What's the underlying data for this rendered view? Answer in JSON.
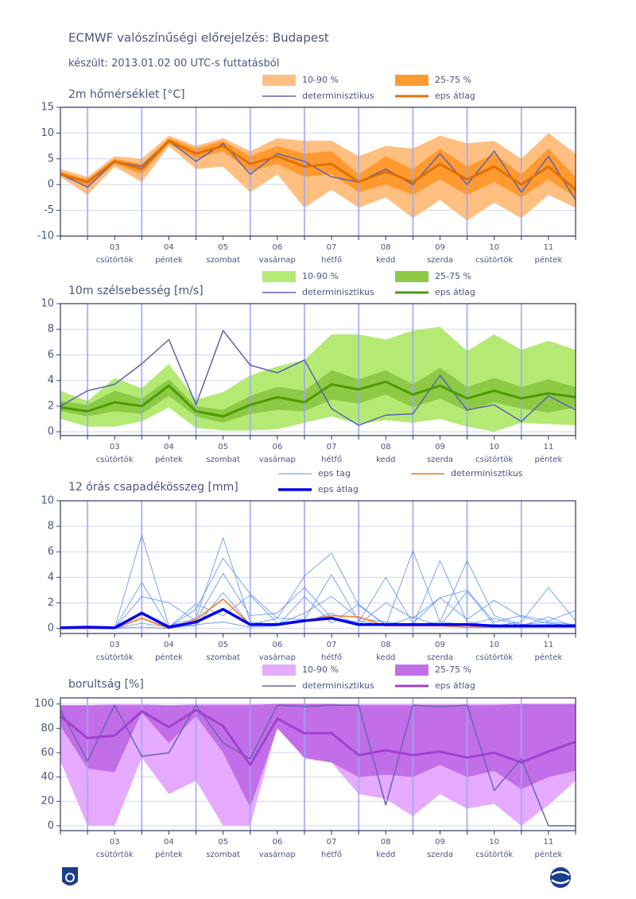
{
  "title": "ECMWF valószínűségi előrejelzés: Budapest",
  "subtitle": "készült: 2013.01.02 00 UTC-s futtatásból",
  "days": [
    {
      "date": "03",
      "weekday": "csütörtök"
    },
    {
      "date": "04",
      "weekday": "péntek"
    },
    {
      "date": "05",
      "weekday": "szombat"
    },
    {
      "date": "06",
      "weekday": "vasárnap"
    },
    {
      "date": "07",
      "weekday": "hétfő"
    },
    {
      "date": "08",
      "weekday": "kedd"
    },
    {
      "date": "09",
      "weekday": "szerda"
    },
    {
      "date": "10",
      "weekday": "csütörtök"
    },
    {
      "date": "11",
      "weekday": "péntek"
    }
  ],
  "chart_data": [
    {
      "type": "band",
      "title": "2m hőmérséklet [°C]",
      "ylim": [
        -10,
        15
      ],
      "yticks": [
        -10,
        -5,
        0,
        5,
        10,
        15
      ],
      "grid": true,
      "bands": [
        {
          "name": "10-90 %",
          "color": "#ffbf80",
          "low": [
            1.5,
            -2,
            3.5,
            0.5,
            7.5,
            3,
            3.5,
            -1.5,
            2,
            -4.5,
            -1,
            -4.5,
            -2.5,
            -6.5,
            -3,
            -7,
            -3.5,
            -6.5,
            -2,
            -4.5
          ],
          "high": [
            3,
            1.5,
            5.5,
            5,
            9.5,
            7.5,
            9,
            6.5,
            9,
            8.5,
            8.5,
            5.5,
            7.5,
            7,
            9.5,
            8,
            8.5,
            5,
            10,
            6
          ]
        },
        {
          "name": "25-75 %",
          "color": "#ff9a30",
          "low": [
            1.8,
            -0.5,
            4,
            2,
            8,
            5,
            6.5,
            2.5,
            4,
            1.5,
            2,
            -1.5,
            0,
            -2,
            1,
            -2,
            0.5,
            -2.5,
            1,
            -2.5
          ],
          "high": [
            2.5,
            1,
            5,
            4,
            9,
            7,
            8.5,
            5.5,
            7.5,
            6,
            6.5,
            2,
            5.5,
            3,
            7,
            3.5,
            6,
            2,
            7,
            1.5
          ]
        }
      ],
      "series": [
        {
          "name": "determinisztikus",
          "color": "#6060b0",
          "width": 1.5,
          "values": [
            2,
            -0.5,
            4.5,
            3.5,
            8.5,
            4.5,
            8,
            2,
            6,
            4.5,
            1.5,
            0.5,
            3,
            0,
            6,
            0,
            6.5,
            -1.5,
            5.5,
            -3
          ]
        },
        {
          "name": "eps átlag",
          "color": "#e07000",
          "width": 3,
          "values": [
            2,
            0.5,
            4.5,
            3,
            8.5,
            6,
            7.5,
            4,
            5.5,
            3.5,
            4,
            0.5,
            2.5,
            0.5,
            4,
            1,
            3.5,
            0,
            3.5,
            -1
          ]
        }
      ]
    },
    {
      "type": "band",
      "title": "10m szélsebesség [m/s]",
      "ylim": [
        -0.3,
        10
      ],
      "yticks": [
        0,
        2,
        4,
        6,
        8,
        10
      ],
      "grid": true,
      "bands": [
        {
          "name": "10-90 %",
          "color": "#b4ea74",
          "low": [
            1.0,
            0.4,
            0.4,
            0.8,
            1.9,
            0.3,
            0.1,
            0.1,
            0.2,
            0.7,
            1.2,
            0.6,
            0.9,
            0.7,
            1.0,
            0.4,
            0,
            0.7,
            0.6,
            0.5
          ],
          "high": [
            3.2,
            2.4,
            4.2,
            3.4,
            5.3,
            2.5,
            3.1,
            4.4,
            5.1,
            5.6,
            7.6,
            7.6,
            7.2,
            7.9,
            8.2,
            6.3,
            7.6,
            6.4,
            7.1,
            6.4
          ]
        },
        {
          "name": "25-75 %",
          "color": "#8cca46",
          "low": [
            1.6,
            1.2,
            1.6,
            1.4,
            2.8,
            1.2,
            0.7,
            1.4,
            1.7,
            1.6,
            2.5,
            2.2,
            2.9,
            1.9,
            2.6,
            1.6,
            2.3,
            1.8,
            1.5,
            1.9
          ],
          "high": [
            2.4,
            2.1,
            3.2,
            2.6,
            4.1,
            2.0,
            1.7,
            2.8,
            3.5,
            3.2,
            4.8,
            4.1,
            4.8,
            3.7,
            5.0,
            3.5,
            4.2,
            3.5,
            4.1,
            3.5
          ]
        }
      ],
      "series": [
        {
          "name": "determinisztikus",
          "color": "#6060b0",
          "width": 1.5,
          "values": [
            2,
            3.2,
            3.7,
            5.3,
            7.2,
            2.1,
            7.9,
            5.2,
            4.6,
            5.6,
            1.8,
            0.5,
            1.3,
            1.4,
            4.4,
            1.7,
            2.1,
            0.8,
            2.8,
            1.7
          ]
        },
        {
          "name": "eps átlag",
          "color": "#4c9a00",
          "width": 3,
          "values": [
            1.9,
            1.6,
            2.3,
            2.0,
            3.6,
            1.6,
            1.2,
            2.1,
            2.7,
            2.3,
            3.7,
            3.3,
            3.9,
            2.9,
            3.6,
            2.6,
            3.2,
            2.6,
            3.0,
            2.7
          ]
        }
      ]
    },
    {
      "type": "ensemble",
      "title": "12 órás csapadékösszeg [mm]",
      "ylim": [
        -0.4,
        10
      ],
      "yticks": [
        0,
        2,
        4,
        6,
        8,
        10
      ],
      "grid": true,
      "members": {
        "name": "eps tag",
        "color": "#5b8ff0",
        "values": [
          [
            0,
            0.1,
            0,
            7.3,
            0.2,
            0.8,
            7.1,
            0.5,
            0.3,
            1.2,
            2.5,
            0.8,
            0.5,
            0.3,
            0.5,
            0.3,
            0.8,
            0.2,
            0.3,
            0.2
          ],
          [
            0,
            0,
            0,
            3.6,
            0.1,
            1.5,
            5.5,
            2.7,
            0.8,
            4.1,
            5.9,
            1.8,
            0.3,
            0.2,
            5.3,
            0.5,
            0.2,
            0.5,
            3.2,
            0.6
          ],
          [
            0,
            0,
            0,
            2.5,
            2.0,
            0.6,
            4.3,
            1.0,
            1.2,
            3.2,
            0.8,
            0.5,
            4.0,
            0.4,
            2.4,
            3.0,
            0.5,
            1.0,
            0.6,
            1.4
          ],
          [
            0,
            0,
            0,
            1.2,
            0.1,
            0.2,
            2.8,
            0.3,
            0.8,
            0.7,
            4.2,
            0.6,
            0.2,
            6.1,
            0.5,
            5.3,
            1.0,
            0.3,
            0.5,
            0.3
          ],
          [
            0,
            0.1,
            0,
            0.4,
            0.1,
            1.9,
            1.0,
            2.6,
            0.4,
            0.5,
            1.2,
            0.3,
            2.0,
            0.8,
            2.4,
            0.7,
            2.2,
            0.9,
            0.4,
            0.2
          ],
          [
            0,
            0,
            0,
            0.1,
            0,
            0.3,
            0.5,
            0.1,
            0.2,
            2.5,
            0.4,
            1.9,
            0.2,
            0.9,
            0.2,
            2.9,
            0.3,
            0.2,
            0.9,
            0.1
          ]
        ]
      },
      "series": [
        {
          "name": "determinisztikus",
          "color": "#ee8833",
          "width": 1.8,
          "values": [
            0,
            0,
            0,
            0.8,
            0,
            0.7,
            2.3,
            0.3,
            0.3,
            0.6,
            1.0,
            0.9,
            0.2,
            0.2,
            0.2,
            0.1,
            0.1,
            0.1,
            0.1,
            0.1
          ]
        },
        {
          "name": "eps átlag",
          "color": "#0000ee",
          "width": 3.5,
          "values": [
            0.05,
            0.1,
            0.05,
            1.2,
            0.1,
            0.5,
            1.5,
            0.3,
            0.3,
            0.6,
            0.8,
            0.3,
            0.3,
            0.3,
            0.3,
            0.3,
            0.2,
            0.2,
            0.2,
            0.2
          ]
        }
      ]
    },
    {
      "type": "band",
      "title": "borultság [%]",
      "ylim": [
        -4,
        105
      ],
      "yticks": [
        0,
        20,
        40,
        60,
        80,
        100
      ],
      "grid": true,
      "bands": [
        {
          "name": "10-90 %",
          "color": "#e6aaff",
          "low": [
            53,
            0,
            0,
            56,
            26,
            37,
            0,
            0,
            82,
            55,
            52,
            26,
            22,
            8,
            26,
            14,
            18,
            0,
            17,
            37
          ],
          "high": [
            99,
            99,
            100,
            100,
            99,
            100,
            100,
            100,
            100,
            100,
            100,
            100,
            100,
            100,
            100,
            100,
            100,
            100,
            100,
            100
          ]
        },
        {
          "name": "25-75 %",
          "color": "#c26ee8",
          "low": [
            82,
            47,
            44,
            93,
            68,
            90,
            60,
            15,
            80,
            56,
            52,
            40,
            42,
            40,
            50,
            40,
            45,
            30,
            40,
            45
          ],
          "high": [
            99,
            99,
            99,
            99,
            99,
            99,
            99,
            99,
            100,
            100,
            100,
            99,
            99,
            99,
            99,
            99,
            99,
            100,
            100,
            100
          ]
        }
      ],
      "series": [
        {
          "name": "determinisztikus",
          "color": "#6666aa",
          "width": 1.5,
          "values": [
            95,
            53,
            99,
            57,
            60,
            99,
            68,
            55,
            99,
            98,
            99,
            99,
            17,
            99,
            98,
            99,
            29,
            55,
            0,
            0
          ]
        },
        {
          "name": "eps átlag",
          "color": "#a040d0",
          "width": 3,
          "values": [
            90,
            72,
            74,
            94,
            81,
            95,
            82,
            50,
            88,
            76,
            76,
            58,
            62,
            58,
            61,
            56,
            60,
            52,
            61,
            69
          ]
        }
      ]
    }
  ]
}
